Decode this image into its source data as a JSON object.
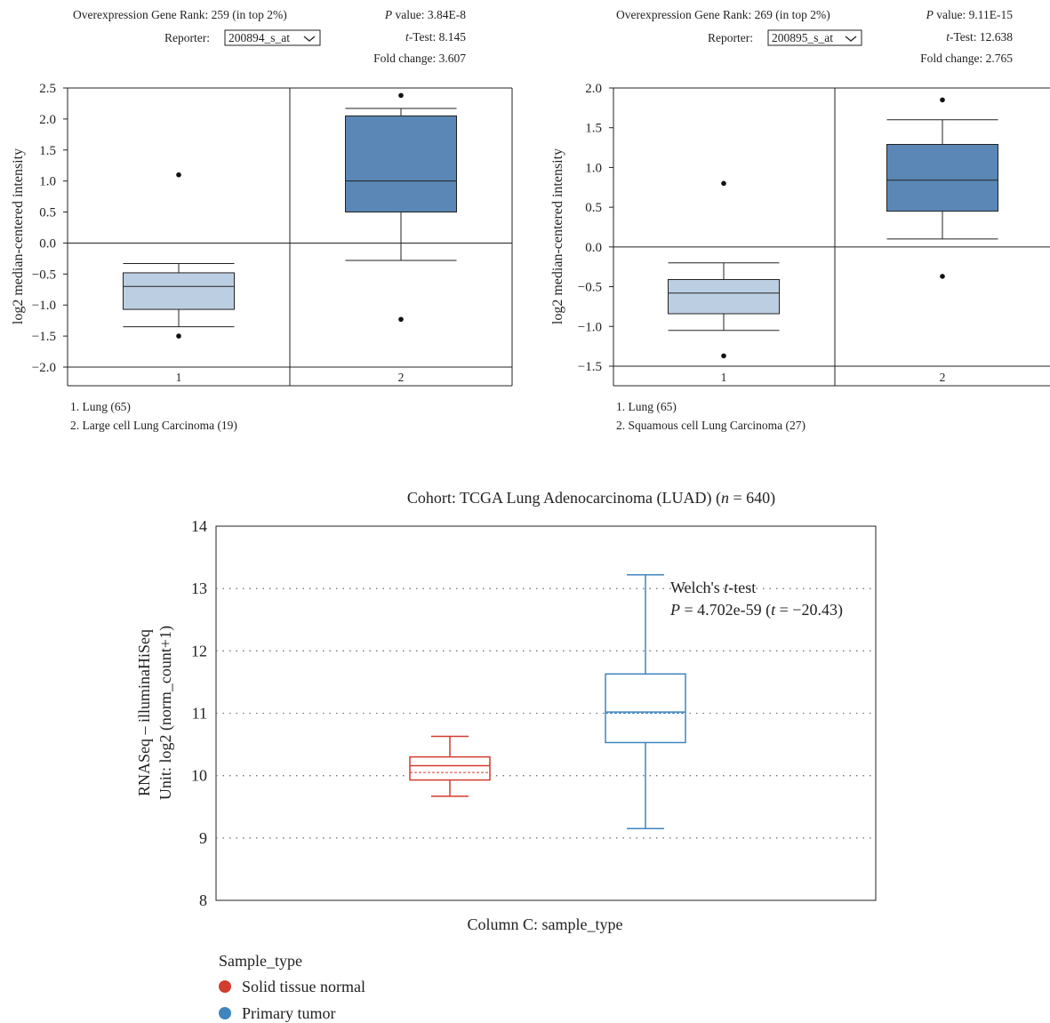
{
  "panels": [
    {
      "rank_text": "Overexpression Gene Rank: 259 (in top 2%)",
      "reporter_label": "Reporter:",
      "reporter_value": "200894_s_at",
      "p_label": "P",
      "p_text": " value: 3.84E-8",
      "t_label": "t",
      "t_text": "-Test: 8.145",
      "fold_text": "Fold change: 3.607",
      "ylabel": "log2 median-centered intensity",
      "legend": [
        "1. Lung (65)",
        "2. Large cell Lung Carcinoma (19)"
      ]
    },
    {
      "rank_text": "Overexpression Gene Rank: 269 (in top 2%)",
      "reporter_label": "Reporter:",
      "reporter_value": "200895_s_at",
      "p_label": "P",
      "p_text": " value: 9.11E-15",
      "t_label": "t",
      "t_text": "-Test: 12.638",
      "fold_text": "Fold change: 2.765",
      "ylabel": "log2 median-centered intensity",
      "legend": [
        "1. Lung (65)",
        "2. Squamous cell Lung Carcinoma (27)"
      ]
    }
  ],
  "cohort": {
    "title": "Cohort: TCGA Lung Adenocarcinoma (LUAD) (n = 640)",
    "ylabel_line1": "RNASeq – illuminaHiSeq",
    "ylabel_line2": "Unit: log2 (norm_count+1)",
    "xlabel": "Column C: sample_type",
    "test_line1": "Welch's t-test",
    "test_line2": "P = 4.702e-59 (t = −20.43)",
    "legend_title": "Sample_type"
  },
  "chart_data": [
    {
      "type": "box",
      "categories": [
        "1",
        "2"
      ],
      "ylim": [
        -2.0,
        2.5
      ],
      "yticks": [
        -2.0,
        -1.5,
        -1.0,
        -0.5,
        0.0,
        0.5,
        1.0,
        1.5,
        2.0,
        2.5
      ],
      "box_color": [
        "#bccfe2",
        "#5a87b5"
      ],
      "boxes": [
        {
          "whisker_low": -1.35,
          "q1": -1.07,
          "median": -0.7,
          "q3": -0.48,
          "whisker_high": -0.33,
          "outliers": [
            1.1,
            -1.5
          ]
        },
        {
          "whisker_low": -0.28,
          "q1": 0.5,
          "median": 1.0,
          "q3": 2.05,
          "whisker_high": 2.17,
          "outliers": [
            2.38,
            -1.23
          ]
        }
      ]
    },
    {
      "type": "box",
      "categories": [
        "1",
        "2"
      ],
      "ylim": [
        -1.5,
        2.0
      ],
      "yticks": [
        -1.5,
        -1.0,
        -0.5,
        0.0,
        0.5,
        1.0,
        1.5,
        2.0
      ],
      "box_color": [
        "#bccfe2",
        "#5a87b5"
      ],
      "boxes": [
        {
          "whisker_low": -1.05,
          "q1": -0.84,
          "median": -0.58,
          "q3": -0.41,
          "whisker_high": -0.2,
          "outliers": [
            0.8,
            -1.37
          ]
        },
        {
          "whisker_low": 0.1,
          "q1": 0.45,
          "median": 0.84,
          "q3": 1.29,
          "whisker_high": 1.6,
          "outliers": [
            1.85,
            -0.37
          ]
        }
      ]
    },
    {
      "type": "box",
      "categories": [
        "Solid tissue normal",
        "Primary tumor"
      ],
      "ylim": [
        8,
        14
      ],
      "yticks": [
        8,
        9,
        10,
        11,
        12,
        13,
        14
      ],
      "series_colors": [
        "#d23b2f",
        "#3f85c0"
      ],
      "boxes": [
        {
          "whisker_low": 9.67,
          "q1": 9.93,
          "median": 10.16,
          "q3": 10.3,
          "whisker_high": 10.63,
          "mean": 10.05
        },
        {
          "whisker_low": 9.15,
          "q1": 10.53,
          "median": 11.02,
          "q3": 11.63,
          "whisker_high": 13.22,
          "mean": 11.0
        }
      ],
      "grid": "dotted horizontal at 9–13"
    }
  ]
}
